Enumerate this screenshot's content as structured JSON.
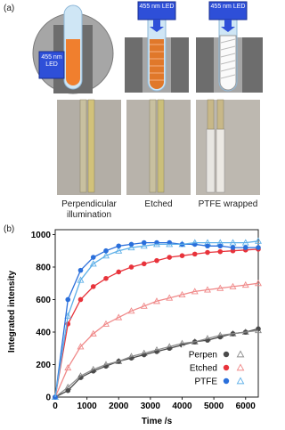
{
  "panel_a": {
    "label": "(a)",
    "led_labels": [
      "455 nm LED",
      "455 nm LED",
      "455 nm LED"
    ],
    "captions": [
      "Perpendicular illumination",
      "Etched",
      "PTFE wrapped"
    ]
  },
  "panel_b": {
    "label": "(b)"
  },
  "chart_data": {
    "type": "scatter",
    "x_label": "Time /s",
    "y_label": "Integrated intensity",
    "x": [
      0,
      400,
      800,
      1200,
      1600,
      2000,
      2400,
      2800,
      3200,
      3600,
      4000,
      4400,
      4800,
      5200,
      5600,
      6000,
      6400
    ],
    "xlim": [
      0,
      6400
    ],
    "xticks": [
      0,
      1000,
      2000,
      3000,
      4000,
      5000,
      6000
    ],
    "ylim": [
      0,
      1030
    ],
    "yticks": [
      0,
      200,
      400,
      600,
      800,
      1000
    ],
    "legend": "lower right",
    "series": [
      {
        "name": "Perpen",
        "color": "#4a4a4a",
        "open_color": "#8c8c8c",
        "values": [
          0,
          40,
          120,
          160,
          190,
          220,
          240,
          260,
          280,
          300,
          320,
          340,
          350,
          370,
          390,
          400,
          420
        ],
        "open_values": [
          0,
          60,
          130,
          170,
          200,
          220,
          250,
          270,
          290,
          310,
          330,
          340,
          360,
          380,
          390,
          400,
          410
        ]
      },
      {
        "name": "Etched",
        "color": "#e8333b",
        "open_color": "#f08a8a",
        "values": [
          0,
          450,
          600,
          680,
          730,
          770,
          800,
          820,
          840,
          860,
          870,
          880,
          890,
          895,
          900,
          905,
          910
        ],
        "open_values": [
          0,
          180,
          310,
          390,
          450,
          490,
          530,
          560,
          590,
          610,
          630,
          650,
          660,
          670,
          680,
          690,
          700
        ]
      },
      {
        "name": "PTFE",
        "color": "#2a6fdb",
        "open_color": "#5fb0e8",
        "values": [
          0,
          600,
          780,
          860,
          900,
          930,
          940,
          950,
          950,
          950,
          940,
          940,
          930,
          930,
          920,
          920,
          920
        ],
        "open_values": [
          0,
          500,
          720,
          820,
          870,
          900,
          920,
          930,
          940,
          940,
          940,
          950,
          950,
          950,
          950,
          950,
          960
        ]
      }
    ]
  }
}
